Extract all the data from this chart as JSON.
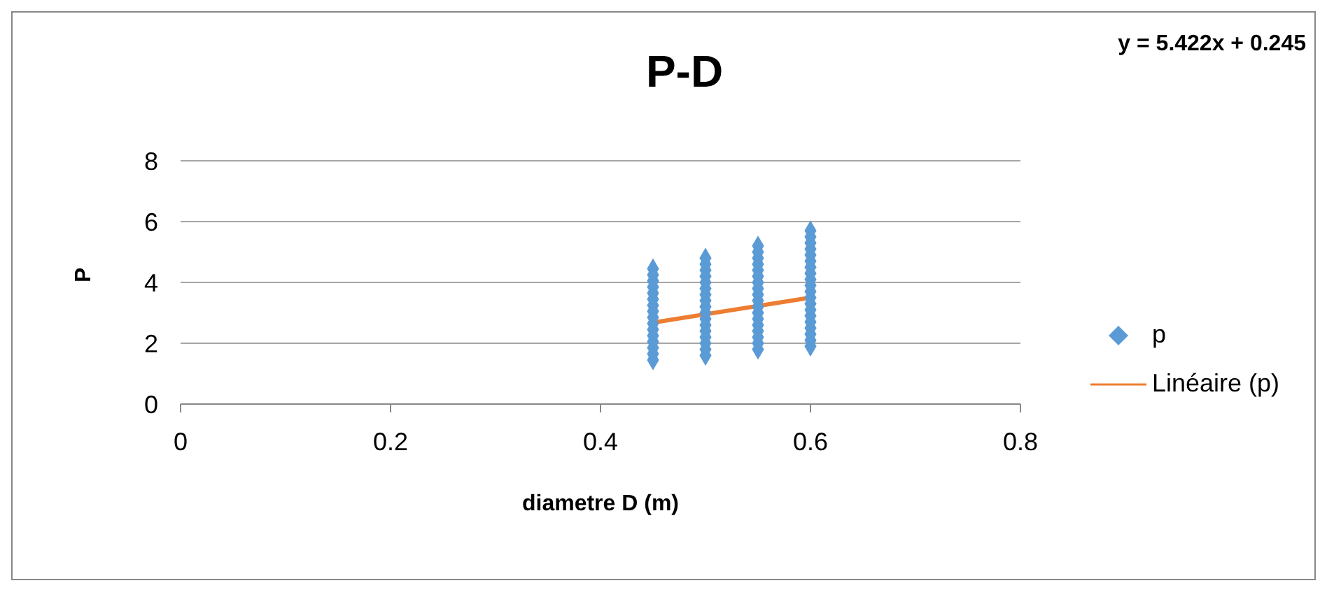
{
  "chart_data": {
    "type": "scatter",
    "title": "P-D",
    "xlabel": "diametre D (m)",
    "ylabel": "P",
    "annotations": [
      "y = 5.422x + 0.245"
    ],
    "xlim": [
      0,
      0.8
    ],
    "xticks": [
      0,
      0.2,
      0.4,
      0.6,
      0.8
    ],
    "ylim": [
      0,
      8
    ],
    "yticks": [
      0,
      2,
      4,
      6,
      8
    ],
    "grid": "y",
    "legend": "right",
    "marker": "diamond",
    "series": [
      {
        "name": "p",
        "color": "#5b9bd5",
        "x": [
          0.45,
          0.45,
          0.45,
          0.45,
          0.45,
          0.45,
          0.45,
          0.45,
          0.45,
          0.45,
          0.45,
          0.45,
          0.45,
          0.45,
          0.45,
          0.45,
          0.5,
          0.5,
          0.5,
          0.5,
          0.5,
          0.5,
          0.5,
          0.5,
          0.5,
          0.5,
          0.5,
          0.5,
          0.5,
          0.5,
          0.5,
          0.5,
          0.5,
          0.55,
          0.55,
          0.55,
          0.55,
          0.55,
          0.55,
          0.55,
          0.55,
          0.55,
          0.55,
          0.55,
          0.55,
          0.55,
          0.55,
          0.55,
          0.55,
          0.55,
          0.55,
          0.6,
          0.6,
          0.6,
          0.6,
          0.6,
          0.6,
          0.6,
          0.6,
          0.6,
          0.6,
          0.6,
          0.6,
          0.6,
          0.6,
          0.6,
          0.6,
          0.6,
          0.6,
          0.6,
          0.6
        ],
        "values": [
          1.45,
          1.65,
          1.85,
          2.05,
          2.25,
          2.45,
          2.65,
          2.85,
          3.05,
          3.25,
          3.45,
          3.65,
          3.85,
          4.05,
          4.25,
          4.45,
          1.6,
          1.8,
          2.0,
          2.2,
          2.4,
          2.6,
          2.8,
          3.0,
          3.2,
          3.4,
          3.6,
          3.8,
          4.0,
          4.2,
          4.4,
          4.6,
          4.8,
          1.8,
          2.0,
          2.2,
          2.4,
          2.6,
          2.8,
          3.0,
          3.2,
          3.4,
          3.6,
          3.8,
          4.0,
          4.2,
          4.4,
          4.6,
          4.8,
          5.0,
          5.2,
          1.9,
          2.1,
          2.3,
          2.5,
          2.7,
          2.9,
          3.1,
          3.3,
          3.5,
          3.7,
          3.9,
          4.1,
          4.3,
          4.5,
          4.7,
          4.9,
          5.1,
          5.3,
          5.5,
          5.7
        ]
      },
      {
        "name": "Linéaire (p)",
        "type": "line",
        "color": "#ed7d31",
        "x": [
          0.45,
          0.6
        ],
        "values": [
          2.68,
          3.5
        ],
        "marker": "none"
      }
    ]
  }
}
